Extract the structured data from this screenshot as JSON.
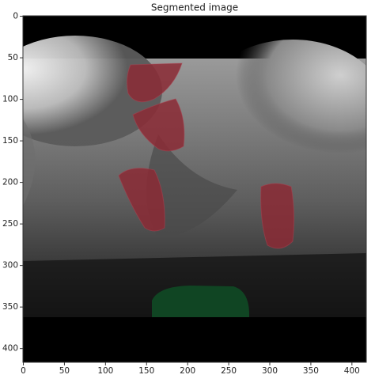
{
  "chart_data": {
    "type": "image",
    "title": "Segmented image",
    "xlim": [
      -0.5,
      417.5
    ],
    "ylim": [
      416.5,
      -0.5
    ],
    "xticks": [
      0,
      50,
      100,
      150,
      200,
      250,
      300,
      350,
      400
    ],
    "yticks": [
      0,
      50,
      100,
      150,
      200,
      250,
      300,
      350,
      400
    ]
  }
}
